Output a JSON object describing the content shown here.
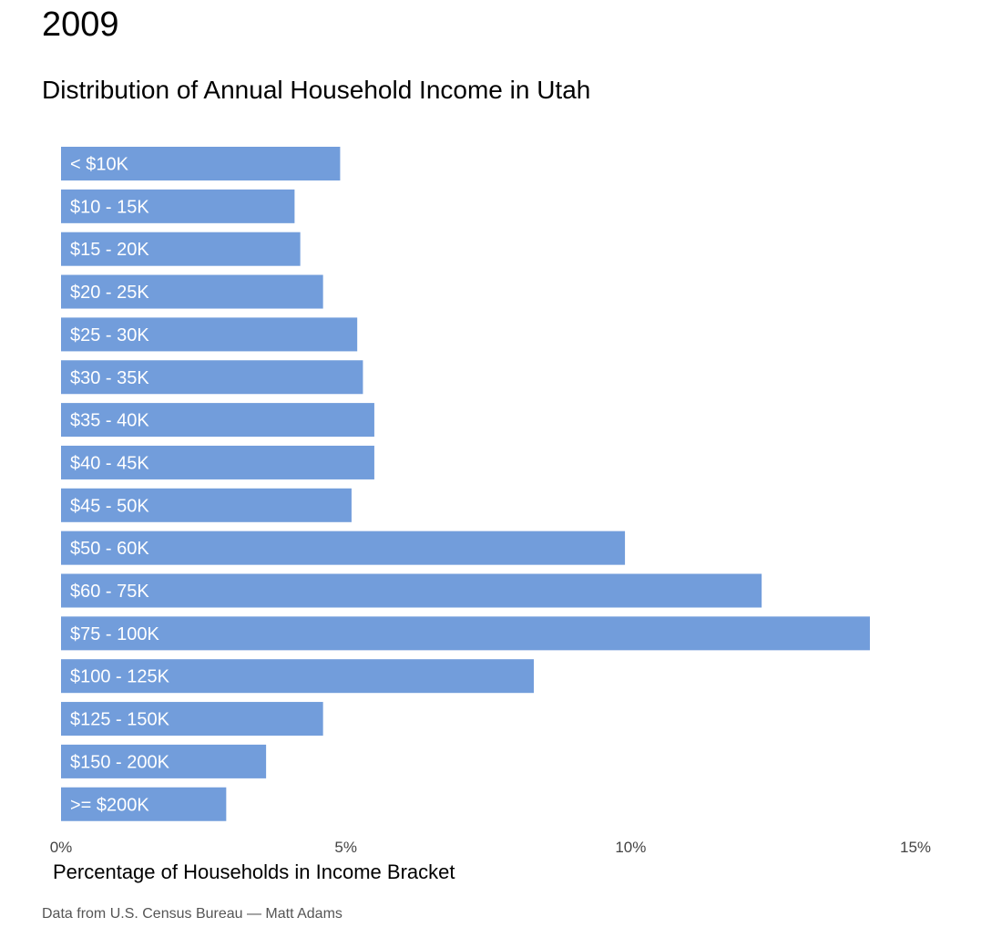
{
  "header": {
    "year": "2009",
    "subtitle": "Distribution of Annual Household Income in Utah"
  },
  "footer": {
    "caption": "Data from U.S. Census Bureau — Matt Adams"
  },
  "colors": {
    "bar": "#729ddb",
    "bar_label": "#ffffff",
    "tick_label": "#444444"
  },
  "chart_data": {
    "type": "bar",
    "orientation": "horizontal",
    "title": "Distribution of Annual Household Income in Utah",
    "xlabel": "Percentage of Households in Income Bracket",
    "ylabel": "",
    "xlim": [
      0,
      15
    ],
    "x_ticks": [
      0,
      5,
      10,
      15
    ],
    "x_tick_labels": [
      "0%",
      "5%",
      "10%",
      "15%"
    ],
    "grid": false,
    "legend": "none",
    "categories": [
      "< $10K",
      "$10 - 15K",
      "$15 - 20K",
      "$20 - 25K",
      "$25 - 30K",
      "$30 - 35K",
      "$35 - 40K",
      "$40 - 45K",
      "$45 - 50K",
      "$50 - 60K",
      "$60 - 75K",
      "$75 - 100K",
      "$100 - 125K",
      "$125 - 150K",
      "$150 - 200K",
      ">= $200K"
    ],
    "values": [
      4.9,
      4.1,
      4.2,
      4.6,
      5.2,
      5.3,
      5.5,
      5.5,
      5.1,
      9.9,
      12.3,
      14.2,
      8.3,
      4.6,
      3.6,
      2.9
    ]
  }
}
